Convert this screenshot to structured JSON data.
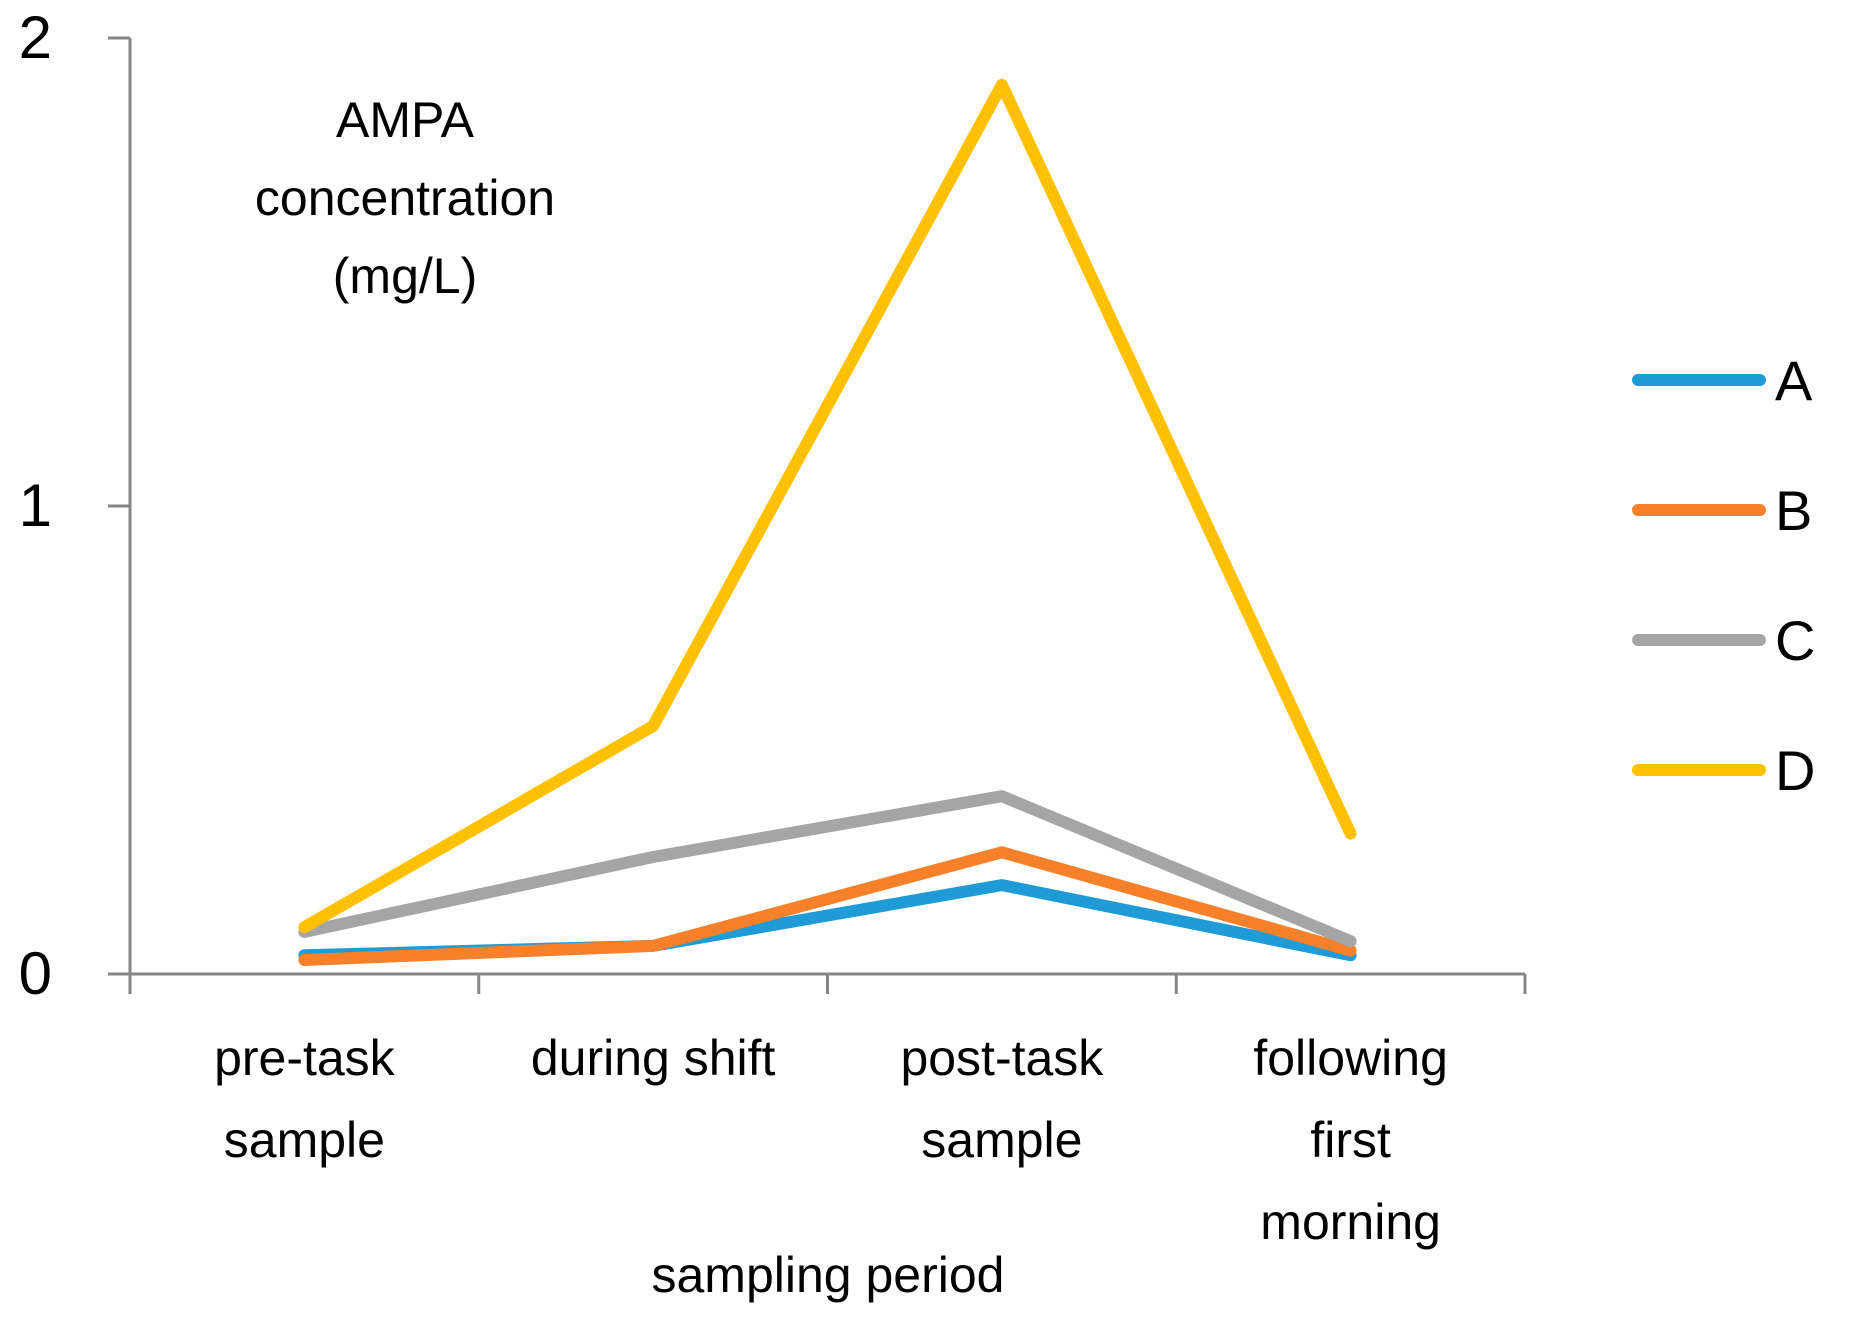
{
  "chart_data": {
    "type": "line",
    "title": "",
    "ylabel_lines": [
      "AMPA",
      "concentration",
      "(mg/L)"
    ],
    "xlabel": "sampling period",
    "categories": [
      [
        "pre-task",
        "sample"
      ],
      [
        "during shift"
      ],
      [
        "post-task",
        "sample"
      ],
      [
        "following",
        "first",
        "morning"
      ]
    ],
    "ylim": [
      0,
      2
    ],
    "yticks": [
      "0",
      "1",
      "2"
    ],
    "ytick_values": [
      0,
      1,
      2
    ],
    "grid": false,
    "legend_position": "right",
    "series": [
      {
        "name": "A",
        "color": "#1F9BD7",
        "values": [
          0.04,
          0.06,
          0.19,
          0.04
        ]
      },
      {
        "name": "B",
        "color": "#F7812A",
        "values": [
          0.03,
          0.06,
          0.26,
          0.05
        ]
      },
      {
        "name": "C",
        "color": "#A5A5A5",
        "values": [
          0.09,
          0.25,
          0.38,
          0.07
        ]
      },
      {
        "name": "D",
        "color": "#FFC000",
        "values": [
          0.1,
          0.53,
          1.9,
          0.3
        ]
      }
    ]
  }
}
